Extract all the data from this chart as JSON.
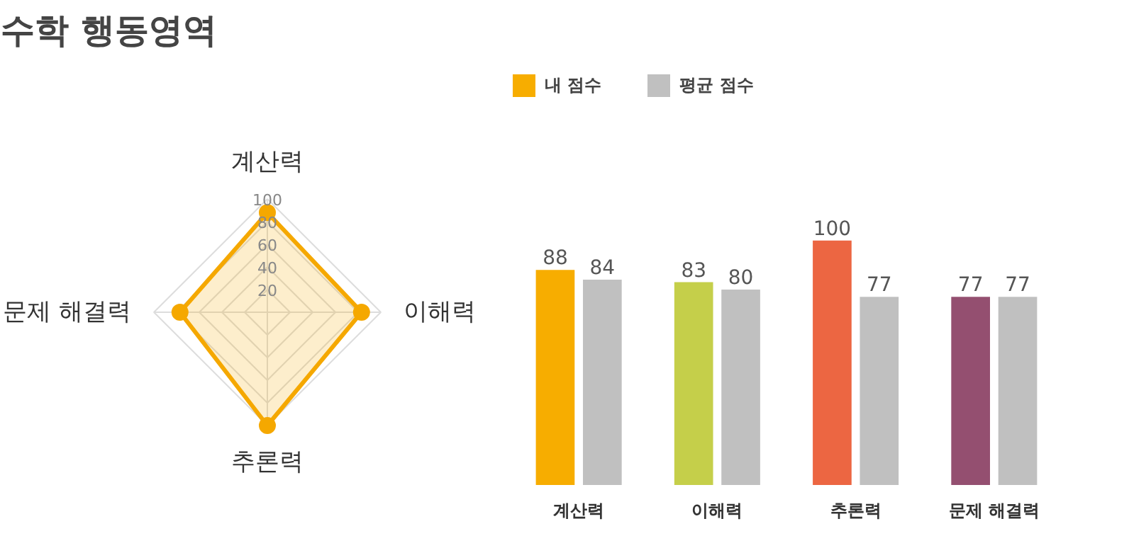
{
  "chart_data": [
    {
      "type": "radar",
      "title": "수학 행동영역",
      "categories": [
        "계산력",
        "이해력",
        "추론력",
        "문제 해결력"
      ],
      "ylim": [
        0,
        100
      ],
      "yticks": [
        20,
        40,
        60,
        80,
        100
      ],
      "marker": "circle",
      "grid": true,
      "series": [
        {
          "color": "#f5a800",
          "values": [
            88,
            83,
            100,
            77
          ]
        }
      ]
    },
    {
      "type": "bar",
      "categories": [
        "계산력",
        "이해력",
        "추론력",
        "문제 해결력"
      ],
      "data_labels": true,
      "legend": "top left",
      "ylim": [
        0,
        100
      ],
      "tick_labels": "x",
      "series": [
        {
          "name": "내 점수",
          "colors": [
            "#f7ad00",
            "#c5cf4a",
            "#ec6642",
            "#944f70"
          ],
          "values": [
            88,
            83,
            100,
            77
          ]
        },
        {
          "name": "평균 점수",
          "color": "#c0c0c0",
          "values": [
            84,
            80,
            77,
            77
          ]
        }
      ]
    }
  ]
}
